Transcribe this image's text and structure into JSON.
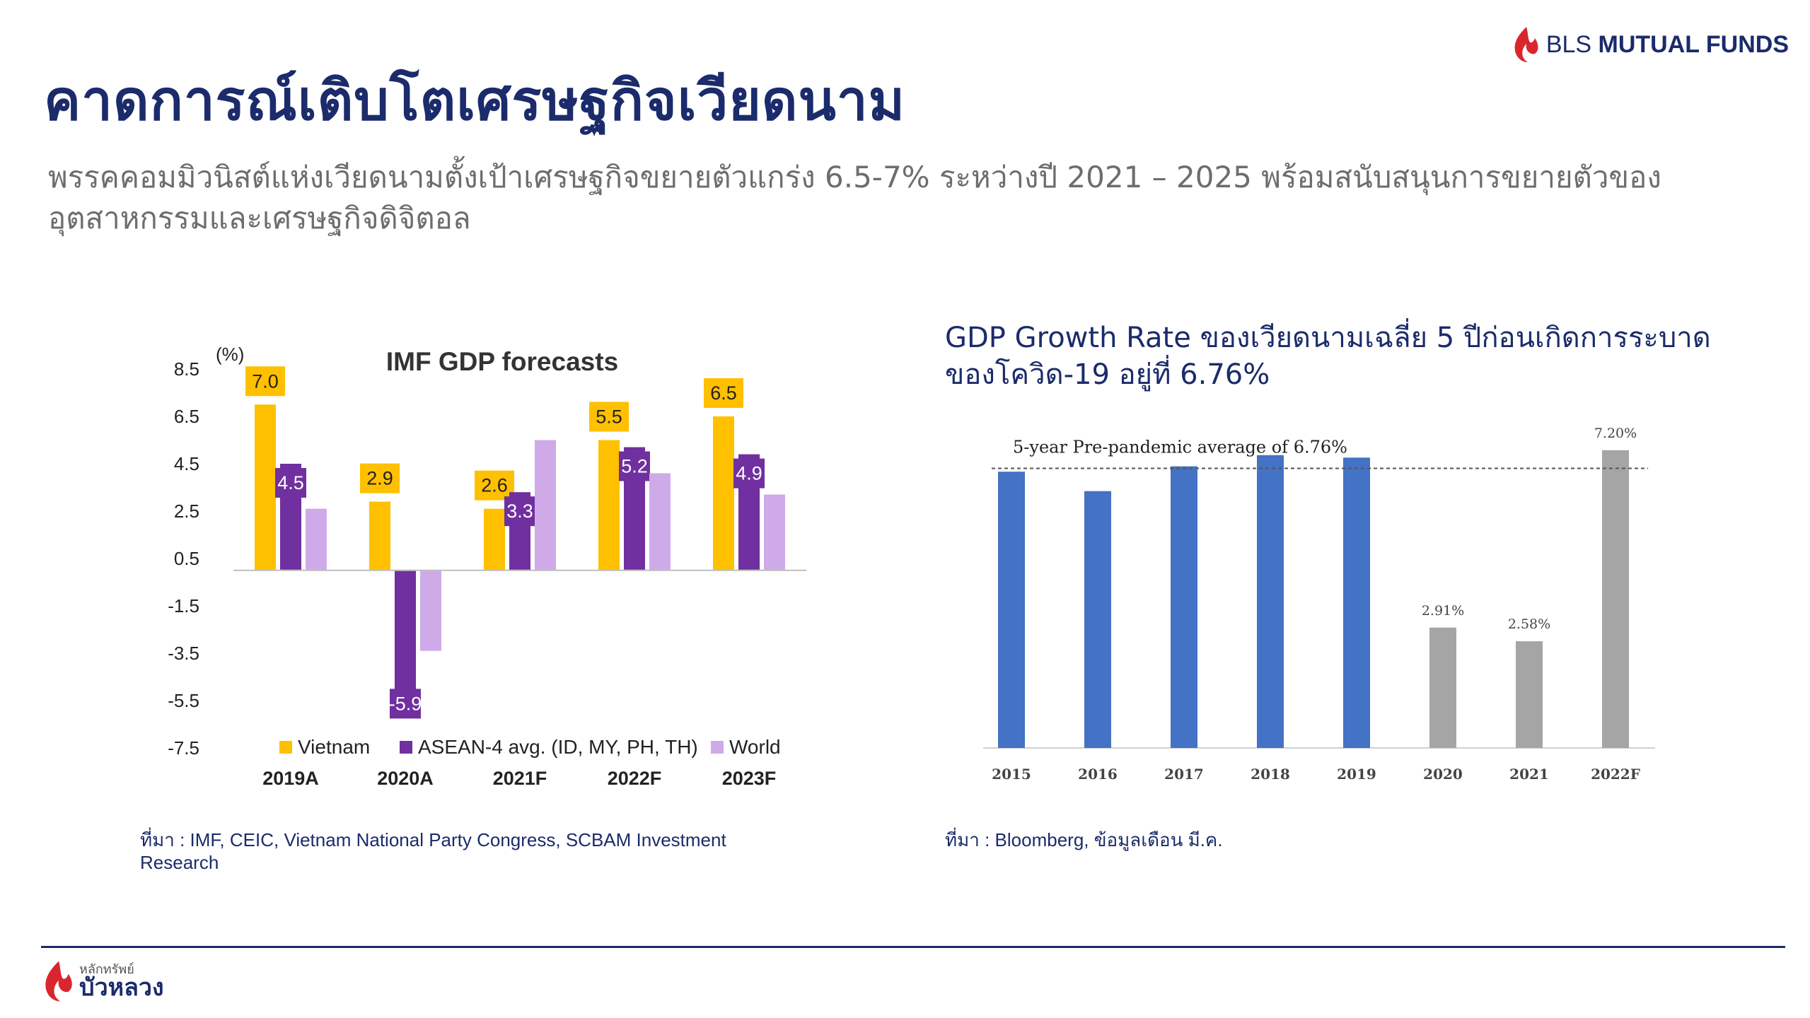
{
  "header": {
    "title": "คาดการณ์เติบโตเศรษฐกิจเวียดนาม",
    "subtitle": "พรรคคอมมิวนิสต์แห่งเวียดนามตั้งเป้าเศรษฐกิจขยายตัวแกร่ง 6.5-7% ระหว่างปี 2021 – 2025 พร้อมสนับสนุนการขยายตัวของอุตสาหกรรมและเศรษฐกิจดิจิตอล",
    "logo_prefix": "BLS",
    "logo_brand": "MUTUAL FUNDS"
  },
  "colors": {
    "title": "#1b2b6b",
    "vietnam": "#ffc000",
    "asean": "#7030a0",
    "world": "#cfaae8",
    "bar_blue": "#4472c4",
    "bar_gray": "#a5a5a5",
    "logo_red": "#d9262e"
  },
  "left_source": "ที่มา : IMF, CEIC, Vietnam National Party Congress, SCBAM Investment Research",
  "right_heading": "GDP  Growth  Rate  ของเวียดนามเฉลี่ย 5 ปีก่อนเกิดการระบาดของโควิด-19 อยู่ที่ 6.76%",
  "right_source": "ที่มา : Bloomberg, ข้อมูลเดือน มี.ค.",
  "footer": {
    "logo_small": "หลักทรัพย์",
    "logo_big": "บัวหลวง"
  },
  "chart_data": [
    {
      "type": "bar",
      "title": "IMF GDP forecasts",
      "ylabel": "(%)",
      "ylim": [
        -7.5,
        8.5
      ],
      "yticks": [
        8.5,
        6.5,
        4.5,
        2.5,
        0.5,
        -1.5,
        -3.5,
        -5.5,
        -7.5
      ],
      "categories": [
        "2019A",
        "2020A",
        "2021F",
        "2022F",
        "2023F"
      ],
      "series": [
        {
          "name": "Vietnam",
          "values": [
            7.0,
            2.9,
            2.6,
            5.5,
            6.5
          ]
        },
        {
          "name": "ASEAN-4 avg. (ID, MY, PH, TH)",
          "values": [
            4.5,
            -5.9,
            3.3,
            5.2,
            4.9
          ]
        },
        {
          "name": "World",
          "values": [
            2.6,
            -3.4,
            5.5,
            4.1,
            3.2
          ]
        }
      ],
      "labels": [
        [
          "7.0",
          "4.5",
          null
        ],
        [
          "2.9",
          "-5.9",
          null
        ],
        [
          "2.6",
          "3.3",
          null
        ],
        [
          "5.5",
          "5.2",
          null
        ],
        [
          "6.5",
          "4.9",
          null
        ]
      ],
      "legend": "bottom",
      "grid": false
    },
    {
      "type": "bar",
      "categories": [
        "2015",
        "2016",
        "2017",
        "2018",
        "2019",
        "2020",
        "2021",
        "2022F"
      ],
      "values": [
        6.68,
        6.21,
        6.81,
        7.08,
        7.02,
        2.91,
        2.58,
        7.2
      ],
      "value_labels": [
        null,
        null,
        null,
        null,
        null,
        "2.91%",
        "2.58%",
        "7.20%"
      ],
      "bar_colors": [
        "blue",
        "blue",
        "blue",
        "blue",
        "blue",
        "gray",
        "gray",
        "gray"
      ],
      "reference_line": {
        "value": 6.76,
        "label": "5-year Pre-pandemic average of 6.76%"
      },
      "ylim": [
        0,
        8
      ],
      "grid": false
    }
  ]
}
